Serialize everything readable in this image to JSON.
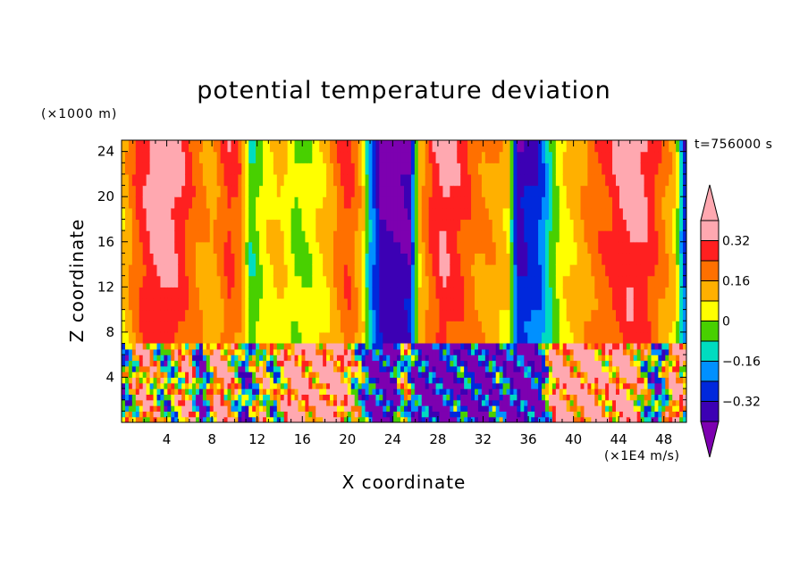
{
  "chart_data": {
    "type": "heatmap",
    "title": "potential temperature deviation",
    "xlabel": "X coordinate",
    "ylabel": "Z coordinate",
    "x_unit_label": "(×1E4 m/s)",
    "y_unit_label": "(×1000 m)",
    "time_label": "t=756000 s",
    "xlim": [
      0,
      50
    ],
    "ylim": [
      0,
      25
    ],
    "x_ticks": [
      4,
      8,
      12,
      16,
      20,
      24,
      28,
      32,
      36,
      40,
      44,
      48
    ],
    "y_ticks": [
      4,
      8,
      12,
      16,
      20,
      24
    ],
    "colorbar": {
      "levels": [
        -0.4,
        -0.32,
        -0.24,
        -0.16,
        -0.08,
        0,
        0.08,
        0.16,
        0.24,
        0.32,
        0.4
      ],
      "tick_labels": [
        "0.32",
        "0.16",
        "0",
        "−0.16",
        "−0.32"
      ],
      "tick_values": [
        0.32,
        0.16,
        0,
        -0.16,
        -0.32
      ],
      "colors": [
        "#7d00b0",
        "#3c00b4",
        "#0028dc",
        "#0090ff",
        "#00dcc0",
        "#48d000",
        "#ffff00",
        "#ffb000",
        "#ff7000",
        "#ff2020",
        "#ffa8b0"
      ]
    },
    "upper_layer": {
      "z_range": [
        7,
        25
      ],
      "columns": [
        {
          "x": 0.3,
          "v": 0.12
        },
        {
          "x": 1.5,
          "v": 0.28
        },
        {
          "x": 3,
          "v": 0.4
        },
        {
          "x": 4,
          "v": 0.42
        },
        {
          "x": 5.2,
          "v": 0.34
        },
        {
          "x": 6.5,
          "v": 0.22
        },
        {
          "x": 8,
          "v": 0.14
        },
        {
          "x": 9.5,
          "v": 0.3
        },
        {
          "x": 10.5,
          "v": 0.22
        },
        {
          "x": 11.5,
          "v": -0.1
        },
        {
          "x": 12.5,
          "v": 0.04
        },
        {
          "x": 14,
          "v": 0.12
        },
        {
          "x": 15.5,
          "v": -0.02
        },
        {
          "x": 17,
          "v": 0.04
        },
        {
          "x": 18.5,
          "v": 0.14
        },
        {
          "x": 20,
          "v": 0.3
        },
        {
          "x": 21.3,
          "v": 0.12
        },
        {
          "x": 22,
          "v": -0.2
        },
        {
          "x": 23,
          "v": -0.45
        },
        {
          "x": 25.5,
          "v": -0.45
        },
        {
          "x": 26.3,
          "v": 0.1
        },
        {
          "x": 27.5,
          "v": 0.3
        },
        {
          "x": 28.5,
          "v": 0.38
        },
        {
          "x": 30,
          "v": 0.3
        },
        {
          "x": 31.5,
          "v": 0.2
        },
        {
          "x": 33,
          "v": 0.16
        },
        {
          "x": 34.3,
          "v": 0.1
        },
        {
          "x": 35,
          "v": -0.4
        },
        {
          "x": 37,
          "v": -0.3
        },
        {
          "x": 38,
          "v": -0.1
        },
        {
          "x": 39,
          "v": 0.06
        },
        {
          "x": 40.5,
          "v": 0.14
        },
        {
          "x": 42,
          "v": 0.24
        },
        {
          "x": 43.5,
          "v": 0.3
        },
        {
          "x": 45,
          "v": 0.4
        },
        {
          "x": 46.5,
          "v": 0.34
        },
        {
          "x": 47.8,
          "v": 0.22
        },
        {
          "x": 49,
          "v": 0.1
        },
        {
          "x": 50,
          "v": -0.38
        }
      ]
    },
    "lower_layer": {
      "z_range": [
        0,
        7
      ],
      "columns": [
        {
          "x": 0,
          "v": -0.2
        },
        {
          "x": 2,
          "v": 0.3
        },
        {
          "x": 4,
          "v": -0.1
        },
        {
          "x": 6,
          "v": 0.3
        },
        {
          "x": 7,
          "v": -0.4
        },
        {
          "x": 8.5,
          "v": 0.42
        },
        {
          "x": 10,
          "v": 0.1
        },
        {
          "x": 11,
          "v": -0.3
        },
        {
          "x": 12.5,
          "v": 0.2
        },
        {
          "x": 13.5,
          "v": -0.1
        },
        {
          "x": 15,
          "v": 0.42
        },
        {
          "x": 17,
          "v": 0.3
        },
        {
          "x": 19,
          "v": 0.42
        },
        {
          "x": 20.5,
          "v": 0.1
        },
        {
          "x": 22,
          "v": -0.35
        },
        {
          "x": 24,
          "v": -0.45
        },
        {
          "x": 25,
          "v": 0.1
        },
        {
          "x": 26,
          "v": -0.35
        },
        {
          "x": 28,
          "v": -0.45
        },
        {
          "x": 30,
          "v": -0.3
        },
        {
          "x": 32,
          "v": -0.45
        },
        {
          "x": 33.5,
          "v": -0.25
        },
        {
          "x": 35,
          "v": -0.45
        },
        {
          "x": 37,
          "v": -0.4
        },
        {
          "x": 38.5,
          "v": 0.42
        },
        {
          "x": 40,
          "v": 0.3
        },
        {
          "x": 41.5,
          "v": 0.42
        },
        {
          "x": 43,
          "v": 0.2
        },
        {
          "x": 44.5,
          "v": 0.42
        },
        {
          "x": 46,
          "v": 0.1
        },
        {
          "x": 47.5,
          "v": -0.3
        },
        {
          "x": 49,
          "v": 0.4
        },
        {
          "x": 50,
          "v": 0.1
        }
      ]
    }
  }
}
